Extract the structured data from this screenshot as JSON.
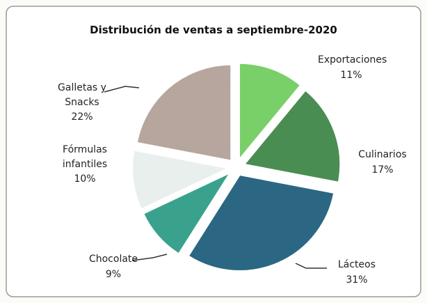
{
  "chart_data": {
    "type": "pie",
    "title": "Distribución de ventas a septiembre-2020",
    "categories": [
      "Exportaciones",
      "Culinarios",
      "Lácteos",
      "Chocolate",
      "Fórmulas infantiles",
      "Galletas y Snacks"
    ],
    "values": [
      11,
      17,
      31,
      9,
      10,
      22
    ],
    "value_labels": [
      "11%",
      "17%",
      "31%",
      "9%",
      "10%",
      "22%"
    ],
    "colors": [
      "#79cf68",
      "#4a8d52",
      "#2b6783",
      "#3aa28c",
      "#e9efec",
      "#b6a69e"
    ]
  }
}
